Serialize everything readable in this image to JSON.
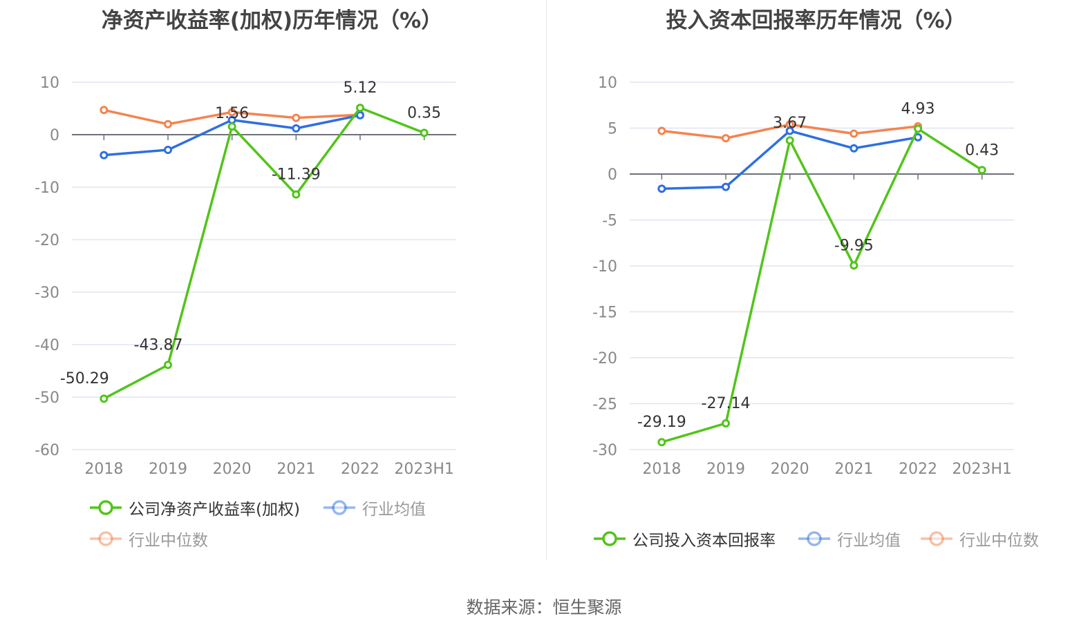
{
  "source": "数据来源：恒生聚源",
  "colors": {
    "company": "#52c41a",
    "industry_avg": "#2f6fe0",
    "industry_median": "#f5834e",
    "grid": "#dfe5f2",
    "axis": "#6e7079"
  },
  "chart_data": [
    {
      "type": "line",
      "title": "净资产收益率(加权)历年情况（%）",
      "categories": [
        "2018",
        "2019",
        "2020",
        "2021",
        "2022",
        "2023H1"
      ],
      "ylim": [
        -60,
        10
      ],
      "yticks": [
        10,
        0,
        -10,
        -20,
        -30,
        -40,
        -50,
        -60
      ],
      "grid": true,
      "legend_position": "bottom",
      "series": [
        {
          "name": "公司净资产收益率(加权)",
          "key": "company",
          "values": [
            -50.29,
            -43.87,
            1.56,
            -11.39,
            5.12,
            0.35
          ],
          "labels": [
            "-50.29",
            "-43.87",
            "1.56",
            "-11.39",
            "5.12",
            "0.35"
          ]
        },
        {
          "name": "行业均值",
          "key": "industry_avg",
          "values": [
            -3.9,
            -2.9,
            2.8,
            1.2,
            3.7,
            null
          ]
        },
        {
          "name": "行业中位数",
          "key": "industry_median",
          "values": [
            4.7,
            2.0,
            4.3,
            3.2,
            3.8,
            null
          ]
        }
      ]
    },
    {
      "type": "line",
      "title": "投入资本回报率历年情况（%）",
      "categories": [
        "2018",
        "2019",
        "2020",
        "2021",
        "2022",
        "2023H1"
      ],
      "ylim": [
        -30,
        10
      ],
      "yticks": [
        10,
        5,
        0,
        -5,
        -10,
        -15,
        -20,
        -25,
        -30
      ],
      "grid": true,
      "legend_position": "bottom",
      "series": [
        {
          "name": "公司投入资本回报率",
          "key": "company",
          "values": [
            -29.19,
            -27.14,
            3.67,
            -9.95,
            4.93,
            0.43
          ],
          "labels": [
            "-29.19",
            "-27.14",
            "3.67",
            "-9.95",
            "4.93",
            "0.43"
          ]
        },
        {
          "name": "行业均值",
          "key": "industry_avg",
          "values": [
            -1.6,
            -1.4,
            4.7,
            2.8,
            4.0,
            null
          ]
        },
        {
          "name": "行业中位数",
          "key": "industry_median",
          "values": [
            4.7,
            3.9,
            5.4,
            4.4,
            5.2,
            null
          ]
        }
      ]
    }
  ]
}
